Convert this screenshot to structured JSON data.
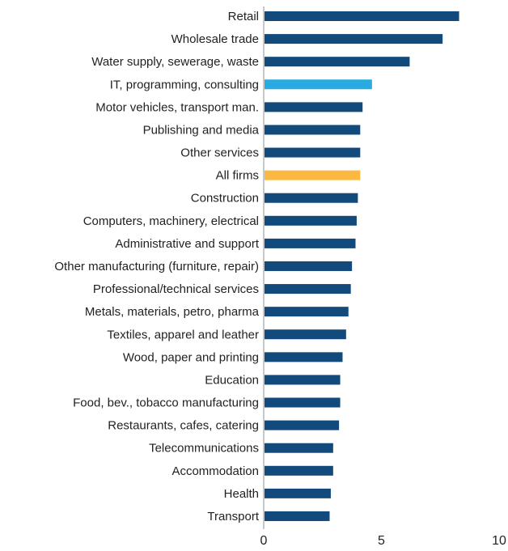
{
  "chart_data": {
    "type": "bar",
    "orientation": "horizontal",
    "categories": [
      "Retail",
      "Wholesale trade",
      "Water supply, sewerage, waste",
      "IT, programming, consulting",
      "Motor vehicles, transport man.",
      "Publishing and media",
      "Other services",
      "All firms",
      "Construction",
      "Computers, machinery, electrical",
      "Administrative and support",
      "Other manufacturing (furniture, repair)",
      "Professional/technical services",
      "Metals, materials, petro, pharma",
      "Textiles, apparel and leather",
      "Wood, paper and printing",
      "Education",
      "Food, bev., tobacco manufacturing",
      "Restaurants, cafes, catering",
      "Telecommunications",
      "Accommodation",
      "Health",
      "Transport"
    ],
    "values": [
      8.3,
      7.6,
      6.2,
      4.6,
      4.2,
      4.1,
      4.1,
      4.1,
      4.0,
      3.95,
      3.9,
      3.75,
      3.7,
      3.6,
      3.5,
      3.35,
      3.25,
      3.25,
      3.2,
      2.95,
      2.95,
      2.85,
      2.8
    ],
    "highlights": {
      "IT, programming, consulting": "#29abe2",
      "All firms": "#fbb941"
    },
    "default_color": "#134a7c",
    "xlim": [
      0,
      10
    ],
    "xticks": [
      0,
      5,
      10
    ],
    "title": "",
    "xlabel": "",
    "ylabel": "",
    "grid": false,
    "legend": "none"
  }
}
